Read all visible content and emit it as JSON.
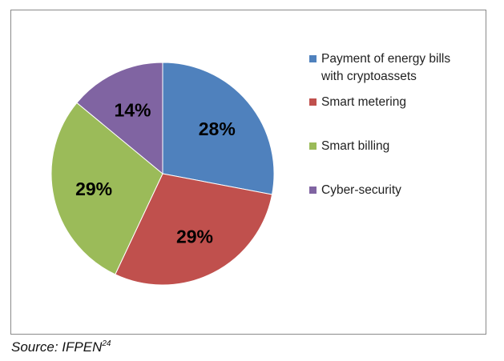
{
  "chart_data": {
    "type": "pie",
    "title": "",
    "categories": [
      "Payment of energy bills with cryptoassets",
      "Smart metering",
      "Smart billing",
      "Cyber-security"
    ],
    "values": [
      28,
      29,
      29,
      14
    ],
    "value_labels": [
      "28%",
      "29%",
      "29%",
      "14%"
    ],
    "colors": [
      "#4f81bd",
      "#c0504d",
      "#9bbb59",
      "#8064a2"
    ],
    "start": "12 o'clock, clockwise",
    "legend_position": "right"
  },
  "legend": {
    "items": [
      {
        "line1": "Payment of energy bills",
        "line2": "with cryptoassets",
        "color": "#4f81bd"
      },
      {
        "line1": "Smart metering",
        "line2": "",
        "color": "#c0504d"
      },
      {
        "line1": "Smart billing",
        "line2": "",
        "color": "#9bbb59"
      },
      {
        "line1": "Cyber-security",
        "line2": "",
        "color": "#8064a2"
      }
    ]
  },
  "source": {
    "text": "Source: IFPEN",
    "superscript": "24"
  }
}
